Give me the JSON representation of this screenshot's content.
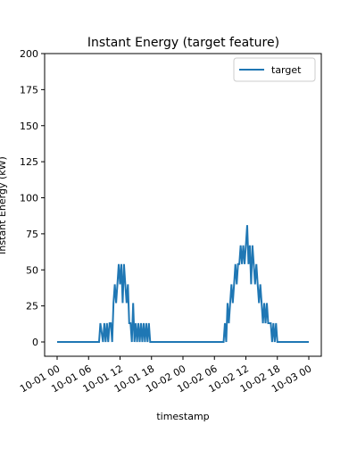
{
  "chart_data": {
    "type": "line",
    "title": "Instant Energy (target feature)",
    "xlabel": "timestamp",
    "ylabel": "Instant Energy (kW)",
    "x_unit": "datetime",
    "xlim": [
      "2023-10-01 00:00",
      "2023-10-03 00:00"
    ],
    "ylim": [
      0,
      200
    ],
    "yticks": [
      0,
      25,
      50,
      75,
      100,
      125,
      150,
      175,
      200
    ],
    "xticks": [
      {
        "value": "2023-10-01 00:00",
        "label": "10-01 00"
      },
      {
        "value": "2023-10-01 06:00",
        "label": "10-01 06"
      },
      {
        "value": "2023-10-01 12:00",
        "label": "10-01 12"
      },
      {
        "value": "2023-10-01 18:00",
        "label": "10-01 18"
      },
      {
        "value": "2023-10-02 00:00",
        "label": "10-02 00"
      },
      {
        "value": "2023-10-02 06:00",
        "label": "10-02 06"
      },
      {
        "value": "2023-10-02 12:00",
        "label": "10-02 12"
      },
      {
        "value": "2023-10-02 18:00",
        "label": "10-02 18"
      },
      {
        "value": "2023-10-03 00:00",
        "label": "10-03 00"
      }
    ],
    "grid": false,
    "legend": {
      "position": "top-right",
      "entries": [
        "target"
      ]
    },
    "series": [
      {
        "name": "target",
        "color": "#1f77b4",
        "x": [
          "2023-10-01 00:00",
          "2023-10-01 08:00",
          "2023-10-01 08:15",
          "2023-10-01 08:45",
          "2023-10-01 09:00",
          "2023-10-01 09:15",
          "2023-10-01 09:30",
          "2023-10-01 09:45",
          "2023-10-01 10:00",
          "2023-10-01 10:15",
          "2023-10-01 10:30",
          "2023-10-01 10:45",
          "2023-10-01 11:00",
          "2023-10-01 11:15",
          "2023-10-01 11:30",
          "2023-10-01 11:45",
          "2023-10-01 12:00",
          "2023-10-01 12:15",
          "2023-10-01 12:30",
          "2023-10-01 12:45",
          "2023-10-01 13:00",
          "2023-10-01 13:15",
          "2023-10-01 13:30",
          "2023-10-01 13:45",
          "2023-10-01 14:00",
          "2023-10-01 14:15",
          "2023-10-01 14:30",
          "2023-10-01 14:45",
          "2023-10-01 15:00",
          "2023-10-01 15:15",
          "2023-10-01 15:30",
          "2023-10-01 15:45",
          "2023-10-01 16:00",
          "2023-10-01 16:15",
          "2023-10-01 16:30",
          "2023-10-01 16:45",
          "2023-10-01 17:00",
          "2023-10-01 17:15",
          "2023-10-01 17:30",
          "2023-10-01 17:45",
          "2023-10-01 18:00",
          "2023-10-02 07:45",
          "2023-10-02 08:00",
          "2023-10-02 08:15",
          "2023-10-02 08:30",
          "2023-10-02 08:45",
          "2023-10-02 09:00",
          "2023-10-02 09:15",
          "2023-10-02 09:30",
          "2023-10-02 09:45",
          "2023-10-02 10:00",
          "2023-10-02 10:15",
          "2023-10-02 10:30",
          "2023-10-02 10:45",
          "2023-10-02 11:00",
          "2023-10-02 11:15",
          "2023-10-02 11:30",
          "2023-10-02 11:45",
          "2023-10-02 12:00",
          "2023-10-02 12:15",
          "2023-10-02 12:30",
          "2023-10-02 12:45",
          "2023-10-02 13:00",
          "2023-10-02 13:15",
          "2023-10-02 13:30",
          "2023-10-02 13:45",
          "2023-10-02 14:00",
          "2023-10-02 14:15",
          "2023-10-02 14:30",
          "2023-10-02 14:45",
          "2023-10-02 15:00",
          "2023-10-02 15:15",
          "2023-10-02 15:30",
          "2023-10-02 15:45",
          "2023-10-02 16:00",
          "2023-10-02 16:15",
          "2023-10-02 16:30",
          "2023-10-02 16:45",
          "2023-10-02 17:00",
          "2023-10-02 17:15",
          "2023-10-02 17:30",
          "2023-10-02 17:45",
          "2023-10-02 18:00",
          "2023-10-03 00:00"
        ],
        "values": [
          0,
          0,
          13,
          0,
          13,
          0,
          13,
          0,
          13,
          13,
          0,
          27,
          40,
          27,
          40,
          54,
          40,
          54,
          27,
          54,
          40,
          27,
          40,
          13,
          13,
          0,
          27,
          0,
          13,
          0,
          13,
          0,
          13,
          0,
          13,
          0,
          13,
          0,
          13,
          0,
          0,
          0,
          13,
          0,
          27,
          13,
          27,
          40,
          27,
          40,
          54,
          40,
          54,
          54,
          67,
          54,
          67,
          54,
          67,
          81,
          54,
          67,
          40,
          67,
          54,
          40,
          54,
          40,
          27,
          40,
          27,
          13,
          27,
          13,
          27,
          13,
          13,
          13,
          0,
          13,
          0,
          13,
          0,
          0
        ]
      }
    ]
  }
}
